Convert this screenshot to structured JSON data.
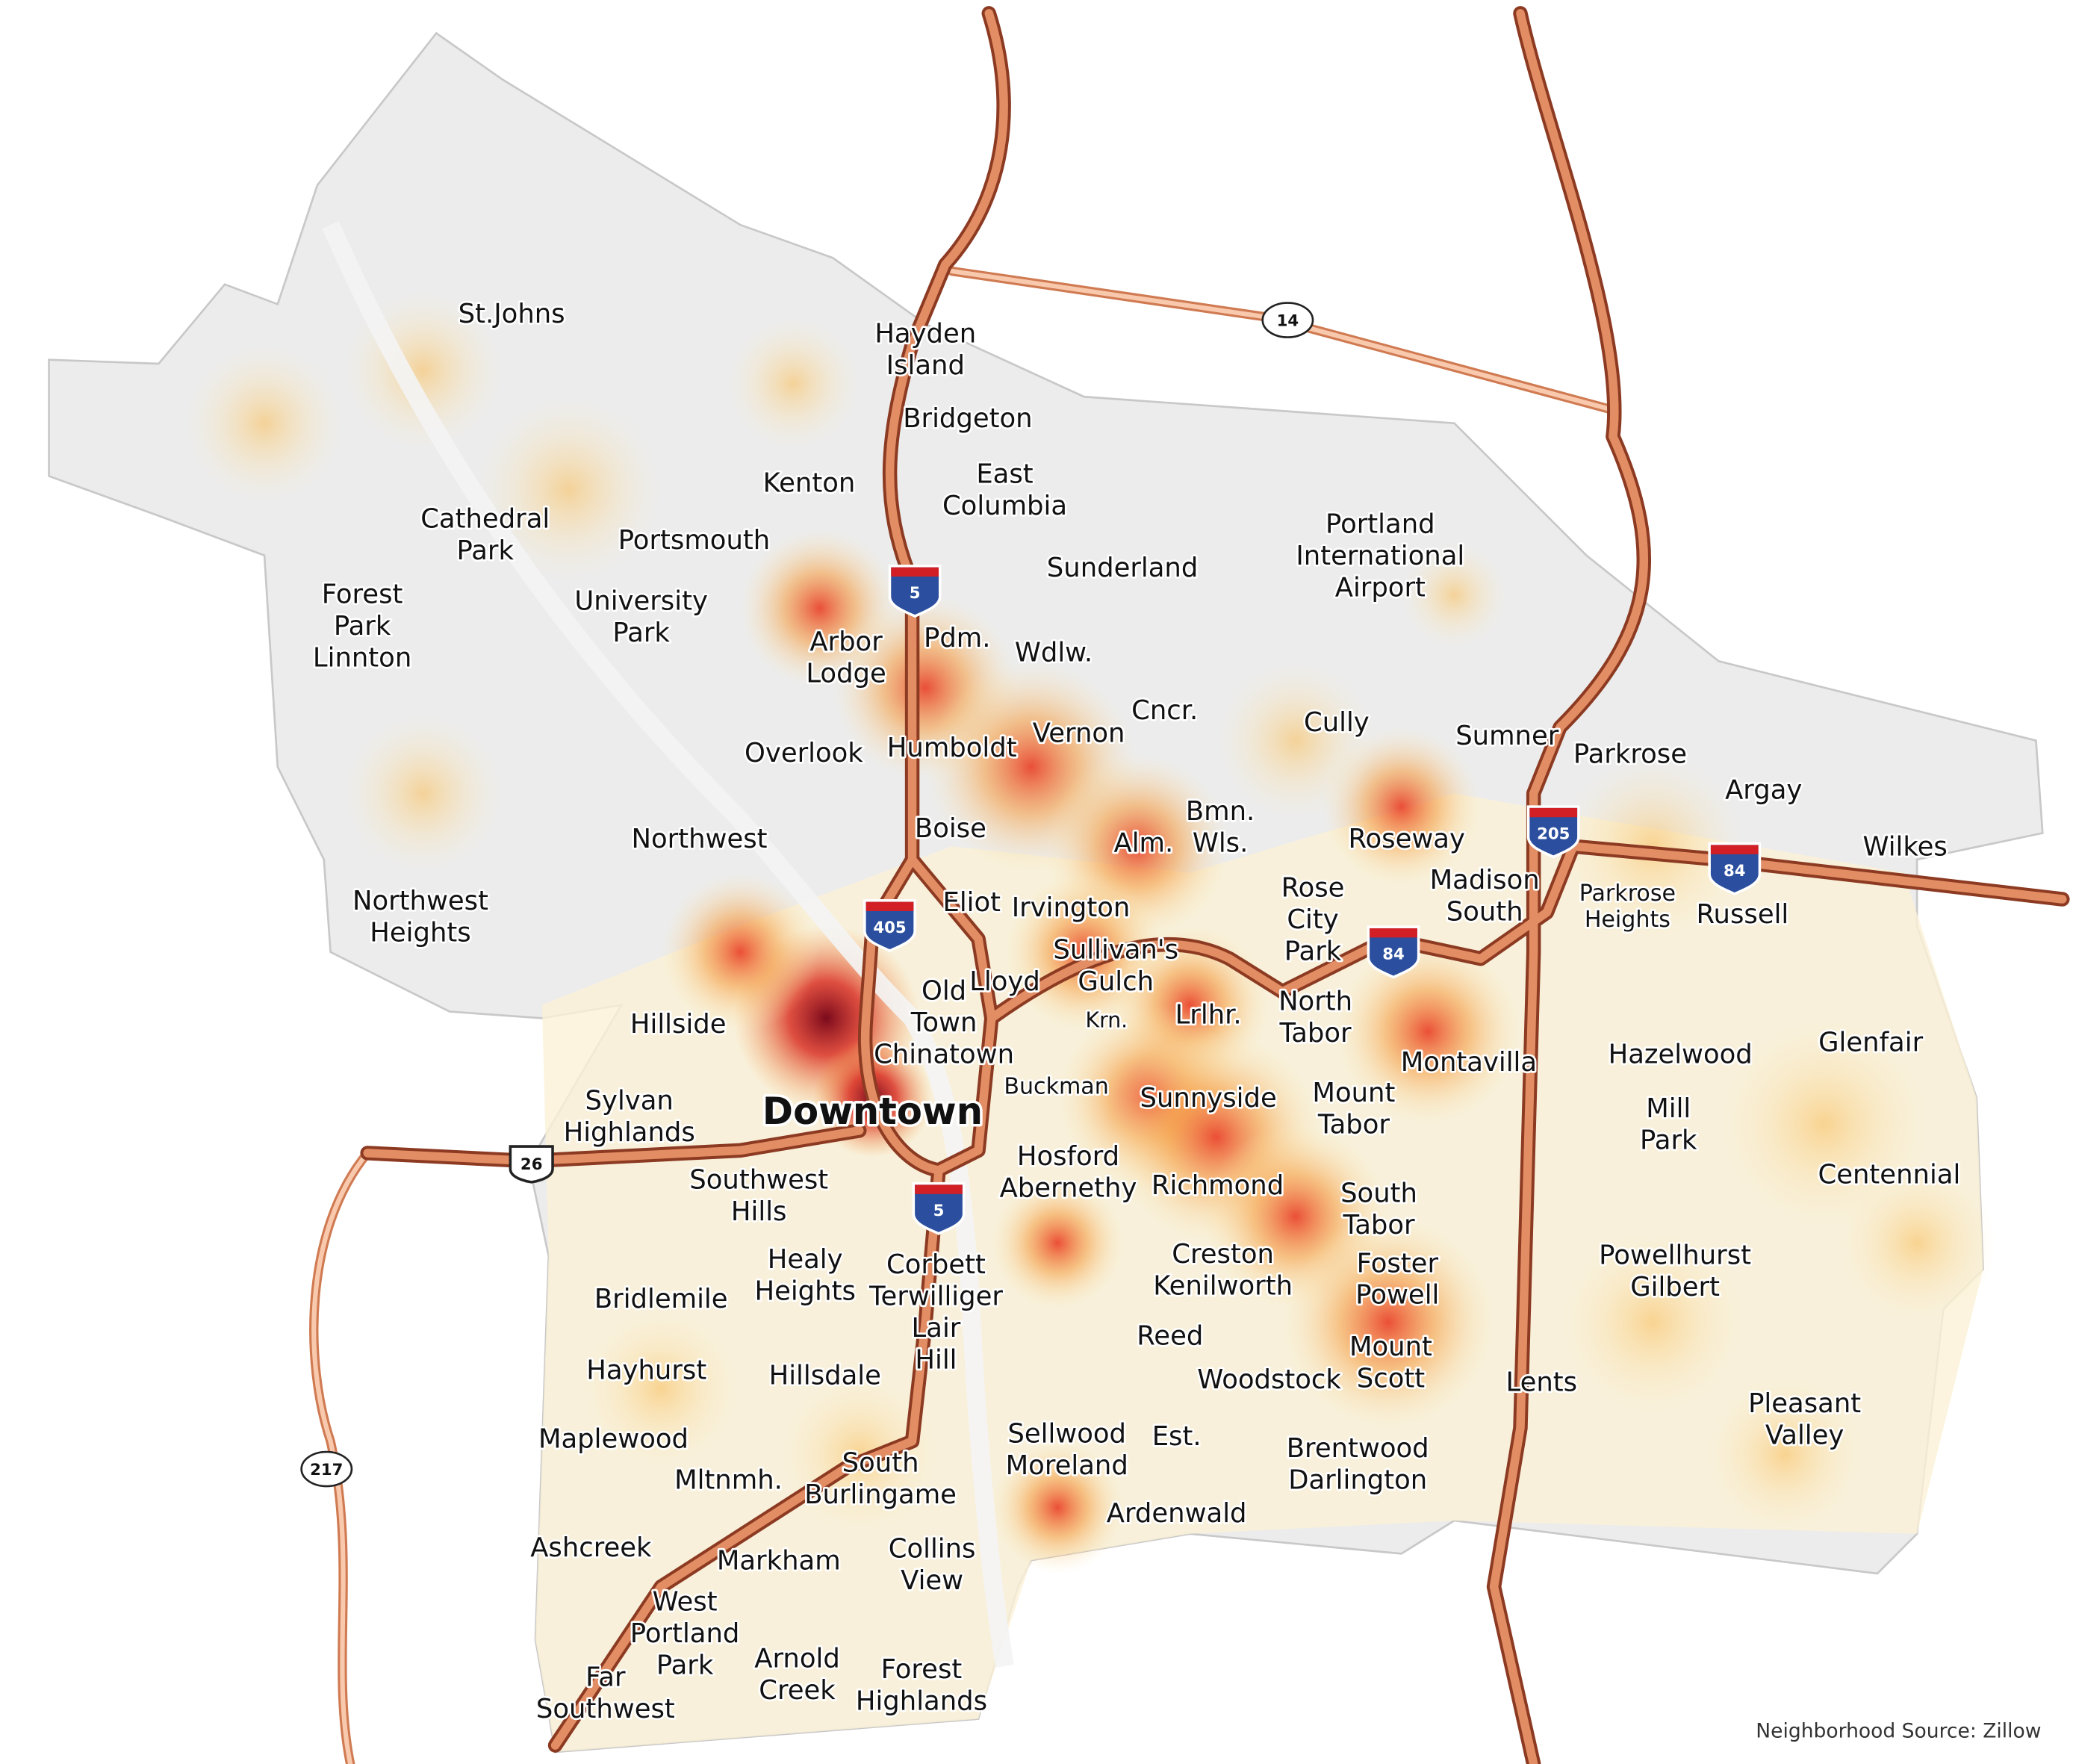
{
  "neighborhoods": [
    [
      "Hayden",
      "Island"
    ],
    [
      "Bridgeton"
    ],
    [
      "St.Johns"
    ],
    [
      "Kenton"
    ],
    [
      "East",
      "Columbia"
    ],
    [
      "Cathedral",
      "Park"
    ],
    [
      "Portsmouth"
    ],
    [
      "Sunderland"
    ],
    [
      "Portland",
      "International",
      "Airport"
    ],
    [
      "Forest",
      "Park",
      "Linnton"
    ],
    [
      "University",
      "Park"
    ],
    [
      "Arbor",
      "Lodge"
    ],
    [
      "Pdm."
    ],
    [
      "Wdlw."
    ],
    [
      "Cncr."
    ],
    [
      "Cully"
    ],
    [
      "Sumner"
    ],
    [
      "Parkrose"
    ],
    [
      "Argay"
    ],
    [
      "Humboldt"
    ],
    [
      "Vernon"
    ],
    [
      "Overlook"
    ],
    [
      "Boise"
    ],
    [
      "Bmn.",
      "Wls."
    ],
    [
      "Alm."
    ],
    [
      "Roseway"
    ],
    [
      "Wilkes"
    ],
    [
      "Northwest"
    ],
    [
      "Rose",
      "City",
      "Park"
    ],
    [
      "Madison",
      "South"
    ],
    [
      "Parkrose",
      "Heights"
    ],
    [
      "Russell"
    ],
    [
      "Northwest",
      "Heights"
    ],
    [
      "Eliot"
    ],
    [
      "Irvington"
    ],
    [
      "Sullivan's",
      "Gulch"
    ],
    [
      "Lloyd"
    ],
    [
      "Old",
      "Town",
      "Chinatown"
    ],
    [
      "North",
      "Tabor"
    ],
    [
      "Krn."
    ],
    [
      "Lrlhr."
    ],
    [
      "Hillside"
    ],
    [
      "Montavilla"
    ],
    [
      "Hazelwood"
    ],
    [
      "Glenfair"
    ],
    [
      "Buckman"
    ],
    [
      "Sunnyside"
    ],
    [
      "Mount",
      "Tabor"
    ],
    [
      "Sylvan",
      "Highlands"
    ],
    [
      "Downtown"
    ],
    [
      "Mill",
      "Park"
    ],
    [
      "Hosford",
      "Abernethy"
    ],
    [
      "Richmond"
    ],
    [
      "Centennial"
    ],
    [
      "Southwest",
      "Hills"
    ],
    [
      "South",
      "Tabor"
    ],
    [
      "Creston",
      "Kenilworth"
    ],
    [
      "Healy",
      "Heights"
    ],
    [
      "Corbett",
      "Terwilliger",
      "Lair",
      "Hill"
    ],
    [
      "Foster",
      "Powell"
    ],
    [
      "Powellhurst",
      "Gilbert"
    ],
    [
      "Bridlemile"
    ],
    [
      "Reed"
    ],
    [
      "Hayhurst"
    ],
    [
      "Hillsdale"
    ],
    [
      "Woodstock"
    ],
    [
      "Mount",
      "Scott"
    ],
    [
      "Lents"
    ],
    [
      "Pleasant",
      "Valley"
    ],
    [
      "Maplewood"
    ],
    [
      "Sellwood",
      "Moreland"
    ],
    [
      "Est."
    ],
    [
      "Brentwood",
      "Darlington"
    ],
    [
      "Mltnmh."
    ],
    [
      "South",
      "Burlingame"
    ],
    [
      "Ardenwald"
    ],
    [
      "Ashcreek"
    ],
    [
      "Markham"
    ],
    [
      "Collins",
      "View"
    ],
    [
      "West",
      "Portland",
      "Park"
    ],
    [
      "Arnold",
      "Creek"
    ],
    [
      "Forest",
      "Highlands"
    ],
    [
      "Far",
      "Southwest"
    ]
  ],
  "shields": {
    "interstate": [
      "5",
      "5",
      "405",
      "84",
      "84",
      "205"
    ],
    "us": [
      "26"
    ],
    "state": [
      "14",
      "217"
    ]
  },
  "source": "Neighborhood Source: Zillow"
}
